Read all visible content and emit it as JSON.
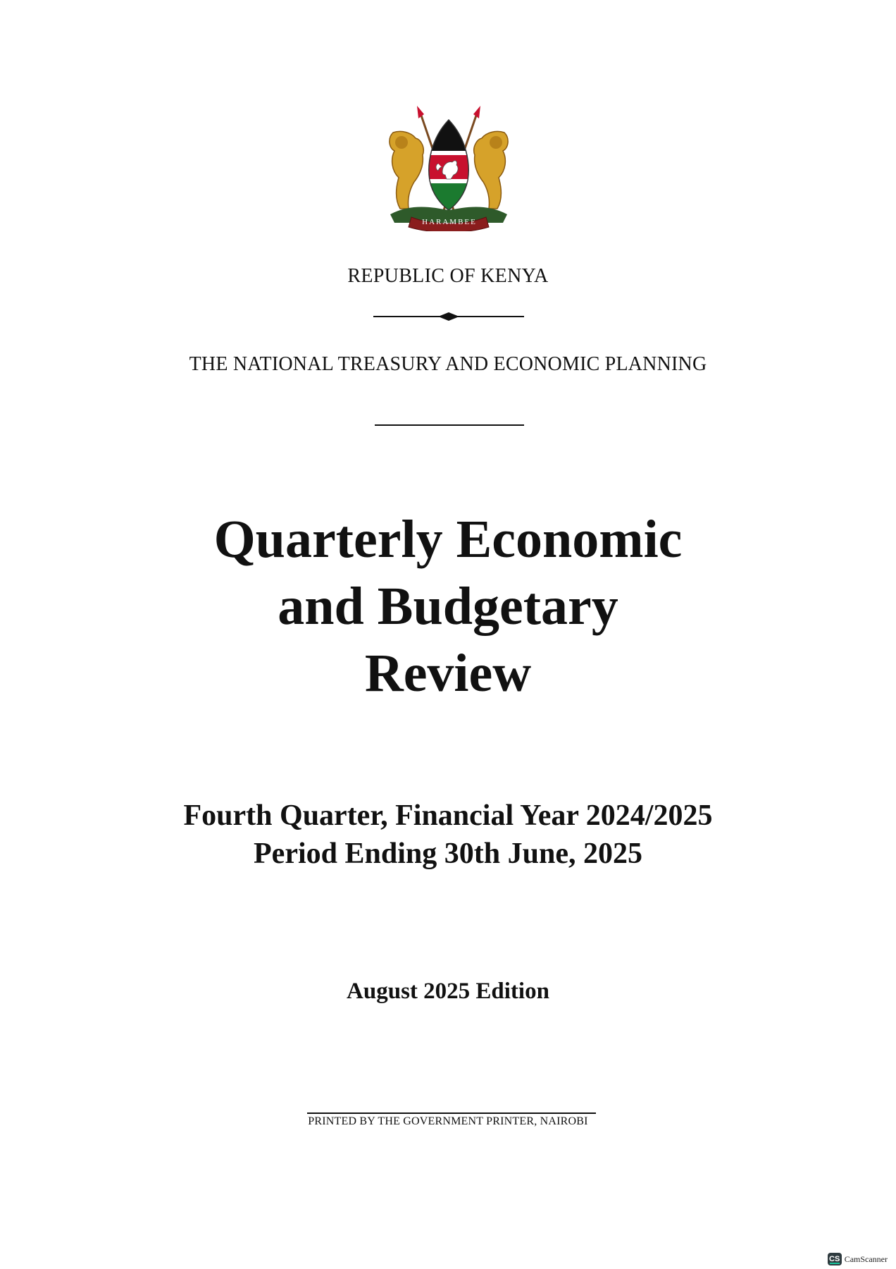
{
  "emblem": {
    "name": "coat-of-arms-of-kenya",
    "motto": "HARAMBEE",
    "colors": {
      "black": "#111111",
      "red": "#c8102e",
      "green": "#1b7a2f",
      "gold": "#d6a22a",
      "white": "#ffffff"
    }
  },
  "header": {
    "country": "REPUBLIC OF KENYA",
    "ministry": "THE NATIONAL TREASURY AND ECONOMIC PLANNING"
  },
  "title": {
    "line1": "Quarterly Economic",
    "line2": "and Budgetary",
    "line3": "Review"
  },
  "period": {
    "line1": "Fourth Quarter, Financial Year 2024/2025",
    "line2": "Period Ending 30th June, 2025"
  },
  "edition": "August 2025 Edition",
  "footer": {
    "printer": "PRINTED BY THE GOVERNMENT PRINTER, NAIROBI"
  },
  "watermark": {
    "badge": "CS",
    "label": "CamScanner"
  }
}
